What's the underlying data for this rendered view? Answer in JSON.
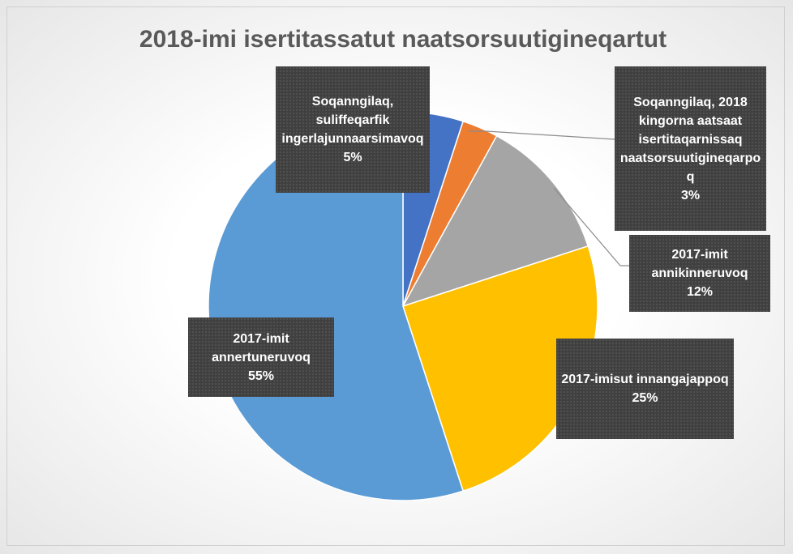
{
  "chart_data": {
    "type": "pie",
    "title": "2018-imi isertitassatut naatsorsuutigineqartut",
    "categories": [
      "Soqanngilaq, suliffeqarfik ingerlajunnaarsimavoq",
      "Soqanngilaq, 2018 kingorna aatsaat isertitaqarnissaq naatsorsuutigineqarpoq",
      "2017-imit annikinneruvoq",
      "2017-imisut innangajappoq",
      "2017-imit annertuneruvoq"
    ],
    "values": [
      5,
      3,
      12,
      25,
      55
    ],
    "value_labels": [
      "5%",
      "3%",
      "12%",
      "25%",
      "55%"
    ],
    "colors": [
      "#4472c4",
      "#ed7d31",
      "#a5a5a5",
      "#ffc000",
      "#5b9bd5"
    ]
  }
}
